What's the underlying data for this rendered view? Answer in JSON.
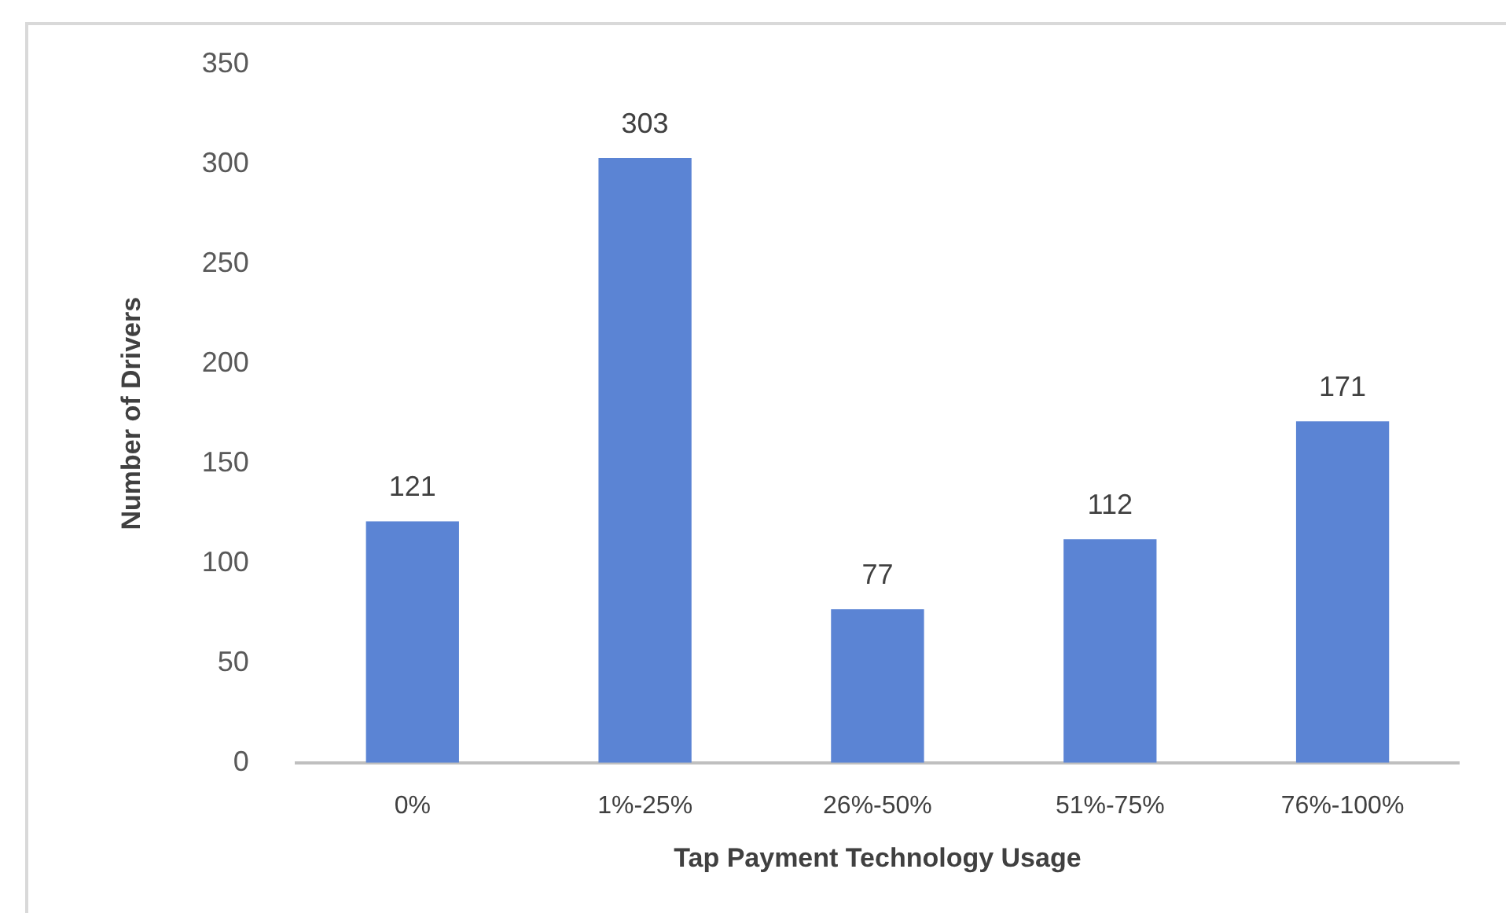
{
  "chart_data": {
    "type": "bar",
    "xlabel": "Tap Payment Technology Usage",
    "ylabel": "Number of Drivers",
    "categories": [
      "0%",
      "1%-25%",
      "26%-50%",
      "51%-75%",
      "76%-100%"
    ],
    "values": [
      121,
      303,
      77,
      112,
      171
    ],
    "color": "#5b84d4",
    "ylim": [
      0,
      350
    ],
    "yticks": [
      0,
      50,
      100,
      150,
      200,
      250,
      300,
      350
    ],
    "grid": false,
    "data_labels": true,
    "legend": false
  }
}
